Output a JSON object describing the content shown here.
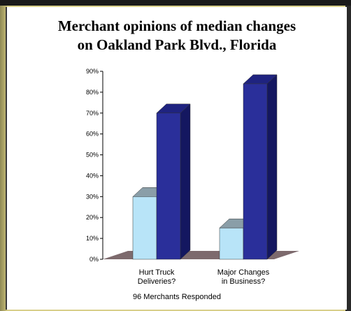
{
  "chart_data": {
    "type": "bar",
    "title_lines": [
      "Merchant opinions of median changes",
      "on Oakland Park Blvd., Florida"
    ],
    "categories": [
      [
        "Hurt Truck",
        "Deliveries?"
      ],
      [
        "Major Changes",
        "in Business?"
      ]
    ],
    "series": [
      {
        "values": [
          30,
          15
        ],
        "color": "#b8e4f8",
        "top_color": "#8a9ea8",
        "side_color": "#8fb6c8"
      },
      {
        "values": [
          70,
          84
        ],
        "color": "#2a2f9a",
        "top_color": "#1f2380",
        "side_color": "#141760"
      }
    ],
    "y_ticks": [
      "0%",
      "10%",
      "20%",
      "30%",
      "40%",
      "50%",
      "60%",
      "70%",
      "80%",
      "90%"
    ],
    "ylim": [
      0,
      90
    ],
    "floor_color": "#7d6a6d",
    "footnote": "96 Merchants Responded",
    "three_d": true,
    "grid": false,
    "legend": "none"
  }
}
